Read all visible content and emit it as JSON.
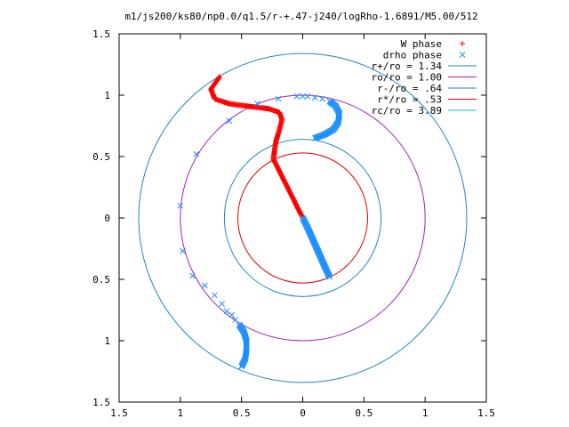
{
  "chart_data": {
    "type": "scatter",
    "title": "m1/js200/ks80/np0.0/q1.5/r-+.47-j240/logRho-1.6891/M5.00/512",
    "xlabel": "",
    "ylabel": "",
    "xlim": [
      -1.5,
      1.5
    ],
    "ylim": [
      -1.5,
      1.5
    ],
    "x_ticks": [
      {
        "value": -1.5,
        "label": "1.5"
      },
      {
        "value": -1.0,
        "label": "1"
      },
      {
        "value": -0.5,
        "label": "0.5"
      },
      {
        "value": 0.0,
        "label": "0"
      },
      {
        "value": 0.5,
        "label": "0.5"
      },
      {
        "value": 1.0,
        "label": "1"
      },
      {
        "value": 1.5,
        "label": "1.5"
      }
    ],
    "y_ticks": [
      {
        "value": 1.5,
        "label": "1.5"
      },
      {
        "value": 1.0,
        "label": "1"
      },
      {
        "value": 0.5,
        "label": "0.5"
      },
      {
        "value": 0.0,
        "label": "0"
      },
      {
        "value": -0.5,
        "label": "0.5"
      },
      {
        "value": -1.0,
        "label": "1"
      },
      {
        "value": -1.5,
        "label": "1.5"
      }
    ],
    "grid": false,
    "legend_position": "top-right",
    "legend": [
      {
        "label": "W phase",
        "kind": "marker",
        "marker": "plus",
        "color": "#ff0000"
      },
      {
        "label": "drho phase",
        "kind": "marker",
        "marker": "cross",
        "color": "#1e90ff"
      },
      {
        "label": "r+/ro = 1.34",
        "kind": "line",
        "color": "#1e86c8"
      },
      {
        "label": "ro/ro = 1.00",
        "kind": "line",
        "color": "#a020c0"
      },
      {
        "label": "r-/ro = .64",
        "kind": "line",
        "color": "#1e86c8"
      },
      {
        "label": "r*/ro = .53",
        "kind": "line",
        "color": "#e00000"
      },
      {
        "label": "rc/ro = 3.89",
        "kind": "line",
        "color": "#00c8c8"
      }
    ],
    "circles": [
      {
        "radius": 1.34,
        "color": "#1e86c8"
      },
      {
        "radius": 1.0,
        "color": "#a020c0"
      },
      {
        "radius": 0.64,
        "color": "#1e86c8"
      },
      {
        "radius": 0.53,
        "color": "#e00000"
      }
    ],
    "series": [
      {
        "name": "W phase",
        "marker": "plus",
        "color": "#ff0000",
        "density": 3,
        "points": [
          [
            0.0,
            0.0
          ],
          [
            -0.035,
            0.07
          ],
          [
            -0.07,
            0.14
          ],
          [
            -0.105,
            0.21
          ],
          [
            -0.14,
            0.28
          ],
          [
            -0.175,
            0.35
          ],
          [
            -0.21,
            0.42
          ],
          [
            -0.24,
            0.48
          ],
          [
            -0.22,
            0.62
          ],
          [
            -0.19,
            0.72
          ],
          [
            -0.17,
            0.8
          ],
          [
            -0.19,
            0.86
          ],
          [
            -0.28,
            0.89
          ],
          [
            -0.45,
            0.91
          ],
          [
            -0.6,
            0.93
          ],
          [
            -0.72,
            0.97
          ],
          [
            -0.75,
            1.05
          ],
          [
            -0.7,
            1.12
          ],
          [
            -0.68,
            1.15
          ]
        ]
      },
      {
        "name": "drho phase dense",
        "marker": "cross",
        "color": "#1e90ff",
        "density": 3,
        "points": [
          [
            0.0,
            0.0
          ],
          [
            0.04,
            -0.08
          ],
          [
            0.08,
            -0.17
          ],
          [
            0.12,
            -0.26
          ],
          [
            0.16,
            -0.35
          ],
          [
            0.2,
            -0.44
          ],
          [
            0.22,
            -0.48
          ]
        ]
      },
      {
        "name": "drho phase ring",
        "marker": "cross",
        "color": "#1e90ff",
        "density": 3,
        "points": [
          [
            0.1,
            0.65
          ],
          [
            0.18,
            0.68
          ],
          [
            0.25,
            0.72
          ],
          [
            0.29,
            0.78
          ],
          [
            0.3,
            0.85
          ],
          [
            0.27,
            0.91
          ],
          [
            0.22,
            0.95
          ]
        ]
      },
      {
        "name": "drho phase lower arc",
        "marker": "cross",
        "color": "#1e90ff",
        "density": 3,
        "points": [
          [
            -0.5,
            -1.21
          ],
          [
            -0.47,
            -1.15
          ],
          [
            -0.46,
            -1.08
          ],
          [
            -0.46,
            -1.0
          ],
          [
            -0.48,
            -0.93
          ],
          [
            -0.52,
            -0.87
          ]
        ]
      },
      {
        "name": "drho phase sparse",
        "marker": "cross",
        "color": "#1e90ff",
        "density": 0,
        "points": [
          [
            -0.55,
            -0.83
          ],
          [
            -0.58,
            -0.79
          ],
          [
            -0.62,
            -0.76
          ],
          [
            -0.66,
            -0.7
          ],
          [
            -0.72,
            -0.63
          ],
          [
            -0.8,
            -0.55
          ],
          [
            -0.9,
            -0.47
          ],
          [
            -0.98,
            -0.27
          ],
          [
            -1.0,
            0.1
          ],
          [
            -0.87,
            0.52
          ],
          [
            -0.6,
            0.79
          ],
          [
            -0.37,
            0.93
          ],
          [
            -0.2,
            0.97
          ],
          [
            -0.05,
            0.99
          ],
          [
            0.0,
            0.99
          ],
          [
            0.04,
            0.99
          ],
          [
            0.1,
            0.98
          ],
          [
            0.16,
            0.97
          ],
          [
            0.22,
            0.95
          ]
        ]
      }
    ]
  }
}
